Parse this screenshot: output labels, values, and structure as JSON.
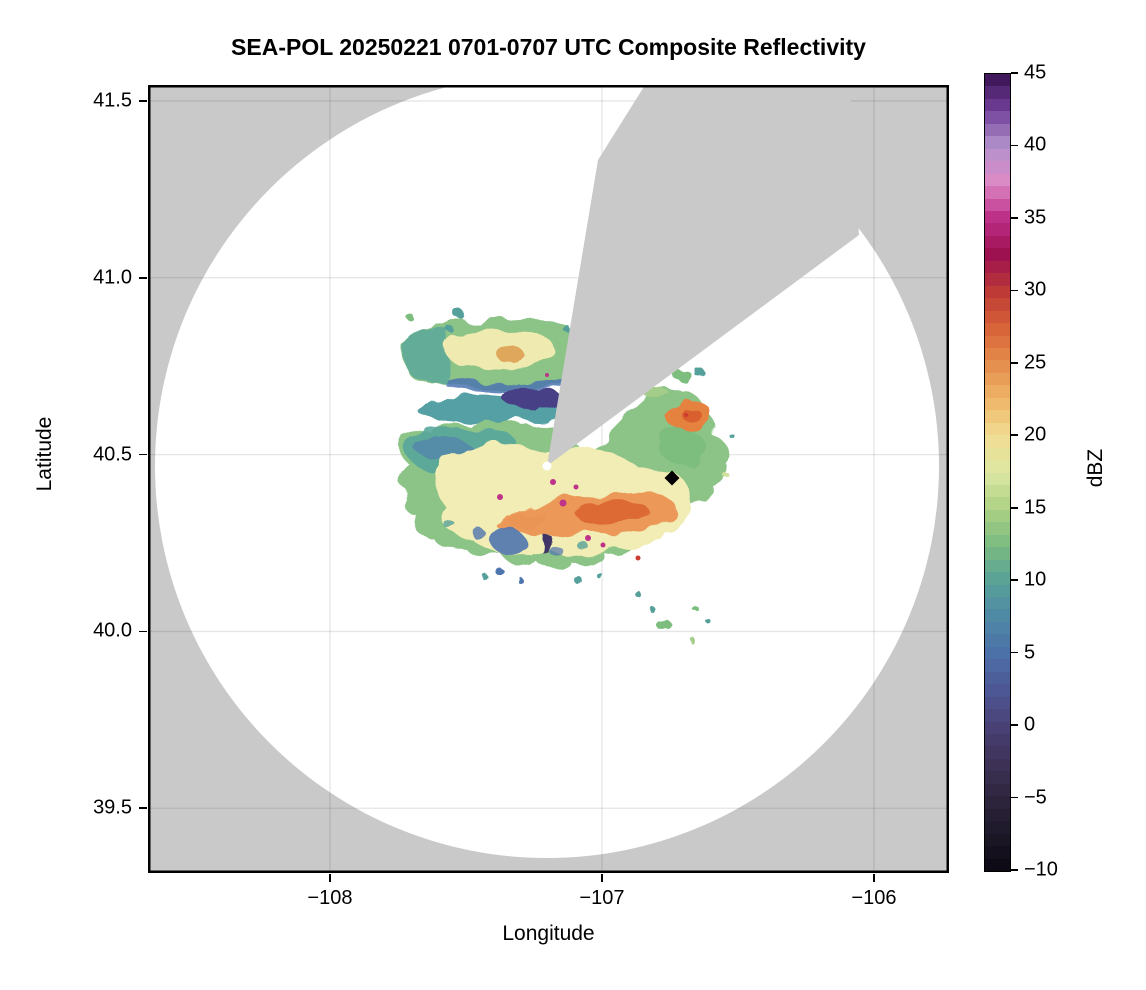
{
  "title": "SEA-POL 20250221 0701-0707 UTC Composite Reflectivity",
  "axes": {
    "xlabel": "Longitude",
    "ylabel": "Latitude",
    "x_ticks": [
      {
        "label": "−108",
        "lon": -108
      },
      {
        "label": "−107",
        "lon": -107
      },
      {
        "label": "−106",
        "lon": -106
      }
    ],
    "y_ticks": [
      {
        "label": "41.5",
        "lat": 41.5
      },
      {
        "label": "41.0",
        "lat": 41.0
      },
      {
        "label": "40.5",
        "lat": 40.5
      },
      {
        "label": "40.0",
        "lat": 40.0
      },
      {
        "label": "39.5",
        "lat": 39.5
      }
    ],
    "lon_range": [
      -108.669,
      -105.724
    ],
    "lat_range": [
      39.317,
      41.545
    ],
    "grid": true
  },
  "colorbar": {
    "label": "dBZ",
    "min": -10,
    "max": 45,
    "n_segments": 64,
    "ticks": [
      {
        "label": "45",
        "value": 45
      },
      {
        "label": "40",
        "value": 40
      },
      {
        "label": "35",
        "value": 35
      },
      {
        "label": "30",
        "value": 30
      },
      {
        "label": "25",
        "value": 25
      },
      {
        "label": "20",
        "value": 20
      },
      {
        "label": "15",
        "value": 15
      },
      {
        "label": "10",
        "value": 10
      },
      {
        "label": "5",
        "value": 5
      },
      {
        "label": "0",
        "value": 0
      },
      {
        "label": "−5",
        "value": -5
      },
      {
        "label": "−10",
        "value": -10
      }
    ],
    "colormap_stops": [
      {
        "v": -10,
        "c": "#0b0812"
      },
      {
        "v": -7.5,
        "c": "#1d1827"
      },
      {
        "v": -5,
        "c": "#2e253e"
      },
      {
        "v": -2.5,
        "c": "#3e3258"
      },
      {
        "v": 0,
        "c": "#4a4175"
      },
      {
        "v": 2.5,
        "c": "#4e5795"
      },
      {
        "v": 5,
        "c": "#4c70a8"
      },
      {
        "v": 7.5,
        "c": "#4f89a6"
      },
      {
        "v": 10,
        "c": "#58a197"
      },
      {
        "v": 12.5,
        "c": "#7cbb81"
      },
      {
        "v": 15,
        "c": "#add283"
      },
      {
        "v": 17.5,
        "c": "#dce7a2"
      },
      {
        "v": 20,
        "c": "#f2dd93"
      },
      {
        "v": 22.5,
        "c": "#efb669"
      },
      {
        "v": 25,
        "c": "#e48d4c"
      },
      {
        "v": 27.5,
        "c": "#d76338"
      },
      {
        "v": 30,
        "c": "#bd3937"
      },
      {
        "v": 32.5,
        "c": "#9c1150"
      },
      {
        "v": 35,
        "c": "#bc2d86"
      },
      {
        "v": 37.5,
        "c": "#dd8ac6"
      },
      {
        "v": 40,
        "c": "#b292cc"
      },
      {
        "v": 42.5,
        "c": "#71409a"
      },
      {
        "v": 45,
        "c": "#37104e"
      }
    ]
  },
  "chart_data": {
    "type": "heatmap",
    "title": "SEA-POL 20250221 0701-0707 UTC Composite Reflectivity",
    "xlabel": "Longitude",
    "ylabel": "Latitude",
    "units": "dBZ",
    "value_range": [
      -10,
      45
    ],
    "xlim": [
      -108.669,
      -105.724
    ],
    "ylim": [
      39.317,
      41.545
    ],
    "radar": {
      "center_lon": -107.2,
      "center_lat": 40.46,
      "coverage_radius_deg_lon": 1.44,
      "no_data_color": "#c9c9c9",
      "blocked_sectors_azimuth_deg": [
        [
          10,
          15
        ],
        [
          15,
          53
        ]
      ],
      "blocked_sector_note": "gray wedge from radar center toward NNE-NE; narrow notch (az ~10-15 deg) visible through echo, wide wedge (az ~15-53 deg) to edge of scan"
    },
    "marker": {
      "shape": "diamond",
      "color": "#000000",
      "lon": -106.74,
      "lat": 40.44
    },
    "echo_region": {
      "lon_extent": [
        -107.75,
        -106.52
      ],
      "lat_extent": [
        40.0,
        40.92
      ],
      "description": "broad stratiform precipitation shield centered just E of radar",
      "core": {
        "lon": -106.95,
        "lat": 40.45,
        "peak_dBZ": 32
      },
      "typical_interior_dBZ": [
        15,
        22
      ],
      "core_band_dBZ": [
        22,
        30
      ],
      "edge_dBZ": [
        -2,
        12
      ],
      "isolated_cells_max_dBZ": 35
    },
    "grid_lons": [
      -108,
      -107,
      -106
    ],
    "grid_lats": [
      41.5,
      41.0,
      40.5,
      40.0,
      39.5
    ],
    "legend_position": "right-colorbar"
  }
}
